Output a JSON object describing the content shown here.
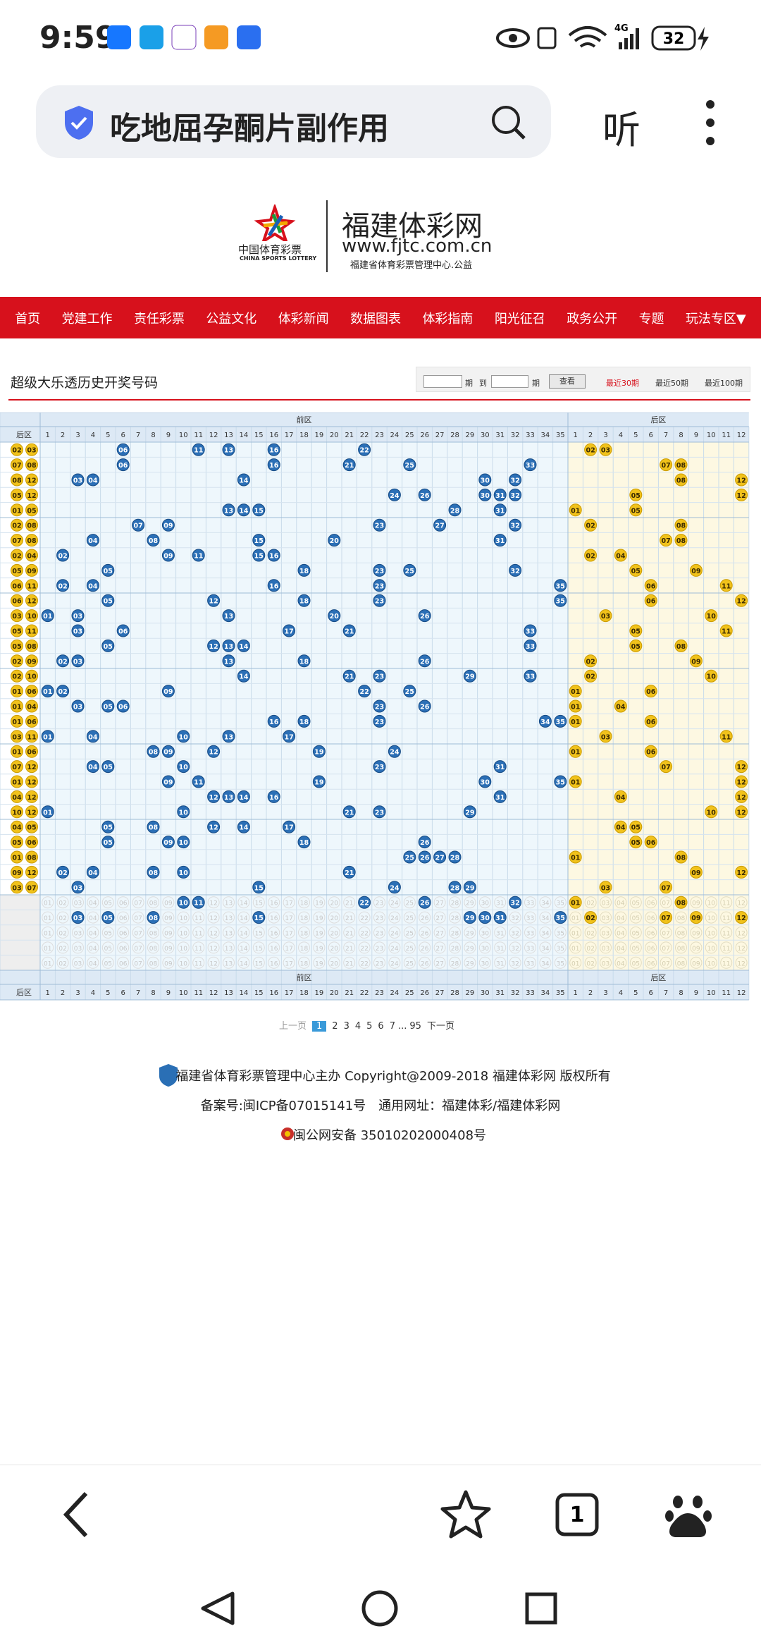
{
  "status_bar": {
    "time": "9:59",
    "network": "4G",
    "battery": "32"
  },
  "search_bar": {
    "query": "吃地屈孕酮片副作用",
    "listen": "听"
  },
  "logo": {
    "cn": "中国体育彩票",
    "en": "CHINA SPORTS LOTTERY",
    "site": "福建体彩网",
    "url": "www.fjtc.com.cn",
    "org": "福建省体育彩票管理中心.公益"
  },
  "nav": [
    "首页",
    "党建工作",
    "责任彩票",
    "公益文化",
    "体彩新闻",
    "数据图表",
    "体彩指南",
    "阳光征召",
    "政务公开",
    "专题",
    "玩法专区▼"
  ],
  "section": {
    "title": "超级大乐透历史开奖号码",
    "from_suffix": "期",
    "to": "到",
    "to_suffix": "期",
    "query": "查看",
    "recent": [
      "最近30期",
      "最近50期",
      "最近100期"
    ]
  },
  "table": {
    "front_header": "前区",
    "back_header": "后区",
    "back_col_label": "后区",
    "front_columns": [
      1,
      2,
      3,
      4,
      5,
      6,
      7,
      8,
      9,
      10,
      11,
      12,
      13,
      14,
      15,
      16,
      17,
      18,
      19,
      20,
      21,
      22,
      23,
      24,
      25,
      26,
      27,
      28,
      29,
      30,
      31,
      32,
      33,
      34,
      35
    ],
    "back_columns": [
      1,
      2,
      3,
      4,
      5,
      6,
      7,
      8,
      9,
      10,
      11,
      12
    ],
    "number_labels": [
      "01",
      "02",
      "03",
      "04",
      "05",
      "06",
      "07",
      "08",
      "09",
      "10",
      "11",
      "12",
      "13",
      "14",
      "15",
      "16",
      "17",
      "18",
      "19",
      "20",
      "21",
      "22",
      "23",
      "24",
      "25",
      "26",
      "27",
      "28",
      "29",
      "30",
      "31",
      "32",
      "33",
      "34",
      "35"
    ],
    "draws": [
      {
        "front": [
          "06",
          "11",
          "13",
          "16",
          "22"
        ],
        "back": [
          "02",
          "03"
        ]
      },
      {
        "front": [
          "06",
          "16",
          "21",
          "25",
          "33"
        ],
        "back": [
          "07",
          "08"
        ]
      },
      {
        "front": [
          "03",
          "04",
          "14",
          "30",
          "32"
        ],
        "back": [
          "08",
          "12"
        ]
      },
      {
        "front": [
          "24",
          "26",
          "30",
          "31",
          "32"
        ],
        "back": [
          "05",
          "12"
        ]
      },
      {
        "front": [
          "13",
          "14",
          "15",
          "28",
          "31"
        ],
        "back": [
          "01",
          "05"
        ]
      },
      {
        "front": [
          "07",
          "09",
          "23",
          "27",
          "32"
        ],
        "back": [
          "02",
          "08"
        ]
      },
      {
        "front": [
          "04",
          "08",
          "15",
          "20",
          "31"
        ],
        "back": [
          "07",
          "08"
        ]
      },
      {
        "front": [
          "02",
          "09",
          "11",
          "15",
          "16"
        ],
        "back": [
          "02",
          "04"
        ]
      },
      {
        "front": [
          "05",
          "18",
          "23",
          "25",
          "32"
        ],
        "back": [
          "05",
          "09"
        ]
      },
      {
        "front": [
          "02",
          "04",
          "16",
          "23",
          "35"
        ],
        "back": [
          "06",
          "11"
        ]
      },
      {
        "front": [
          "05",
          "12",
          "18",
          "23",
          "35"
        ],
        "back": [
          "06",
          "12"
        ]
      },
      {
        "front": [
          "01",
          "03",
          "13",
          "20",
          "26"
        ],
        "back": [
          "03",
          "10"
        ]
      },
      {
        "front": [
          "03",
          "06",
          "17",
          "21",
          "33"
        ],
        "back": [
          "05",
          "11"
        ]
      },
      {
        "front": [
          "05",
          "12",
          "13",
          "14",
          "33"
        ],
        "back": [
          "05",
          "08"
        ]
      },
      {
        "front": [
          "02",
          "03",
          "13",
          "18",
          "26"
        ],
        "back": [
          "02",
          "09"
        ]
      },
      {
        "front": [
          "14",
          "21",
          "23",
          "29",
          "33"
        ],
        "back": [
          "02",
          "10"
        ]
      },
      {
        "front": [
          "01",
          "02",
          "09",
          "22",
          "25"
        ],
        "back": [
          "01",
          "06"
        ]
      },
      {
        "front": [
          "03",
          "05",
          "06",
          "23",
          "26"
        ],
        "back": [
          "01",
          "04"
        ]
      },
      {
        "front": [
          "16",
          "18",
          "23",
          "34",
          "35"
        ],
        "back": [
          "01",
          "06"
        ]
      },
      {
        "front": [
          "01",
          "04",
          "10",
          "13",
          "17"
        ],
        "back": [
          "03",
          "11"
        ]
      },
      {
        "front": [
          "08",
          "09",
          "12",
          "19",
          "24"
        ],
        "back": [
          "01",
          "06"
        ]
      },
      {
        "front": [
          "04",
          "05",
          "10",
          "23",
          "31"
        ],
        "back": [
          "07",
          "12"
        ]
      },
      {
        "front": [
          "09",
          "11",
          "19",
          "30",
          "35"
        ],
        "back": [
          "01",
          "12"
        ]
      },
      {
        "front": [
          "12",
          "13",
          "14",
          "16",
          "31"
        ],
        "back": [
          "04",
          "12"
        ]
      },
      {
        "front": [
          "01",
          "10",
          "21",
          "23",
          "29"
        ],
        "back": [
          "10",
          "12"
        ]
      },
      {
        "front": [
          "05",
          "08",
          "12",
          "14",
          "17"
        ],
        "back": [
          "04",
          "05"
        ]
      },
      {
        "front": [
          "05",
          "09",
          "10",
          "18",
          "26"
        ],
        "back": [
          "05",
          "06"
        ]
      },
      {
        "front": [
          "25",
          "26",
          "27",
          "28"
        ],
        "back": [
          "01",
          "08"
        ]
      },
      {
        "front": [
          "02",
          "04",
          "08",
          "10",
          "21"
        ],
        "back": [
          "09",
          "12"
        ]
      },
      {
        "front": [
          "03",
          "15",
          "24",
          "28",
          "29"
        ],
        "back": [
          "03",
          "07"
        ]
      }
    ],
    "forecast": [
      {
        "front": [
          "10",
          "11",
          "22",
          "26",
          "32"
        ],
        "back": [
          "01",
          "08"
        ]
      },
      {
        "front": [
          "03",
          "05",
          "08",
          "15",
          "29",
          "30",
          "31",
          "35"
        ],
        "back": [
          "02",
          "07",
          "09",
          "12"
        ]
      },
      {
        "front": [],
        "back": []
      },
      {
        "front": [],
        "back": []
      },
      {
        "front": [],
        "back": []
      }
    ]
  },
  "pagination": {
    "prev": "上一页",
    "pages": [
      "1",
      "2",
      "3",
      "4",
      "5",
      "6",
      "7"
    ],
    "ellipsis": "...",
    "last": "95",
    "next": "下一页"
  },
  "footer": [
    "福建省体育彩票管理中心主办 Copyright@2009-2018 福建体彩网 版权所有",
    "备案号:闽ICP备07015141号　通用网址：福建体彩/福建体彩网",
    "闽公网安备 35010202000408号"
  ],
  "bottom_bar": {
    "tabs": "1"
  }
}
